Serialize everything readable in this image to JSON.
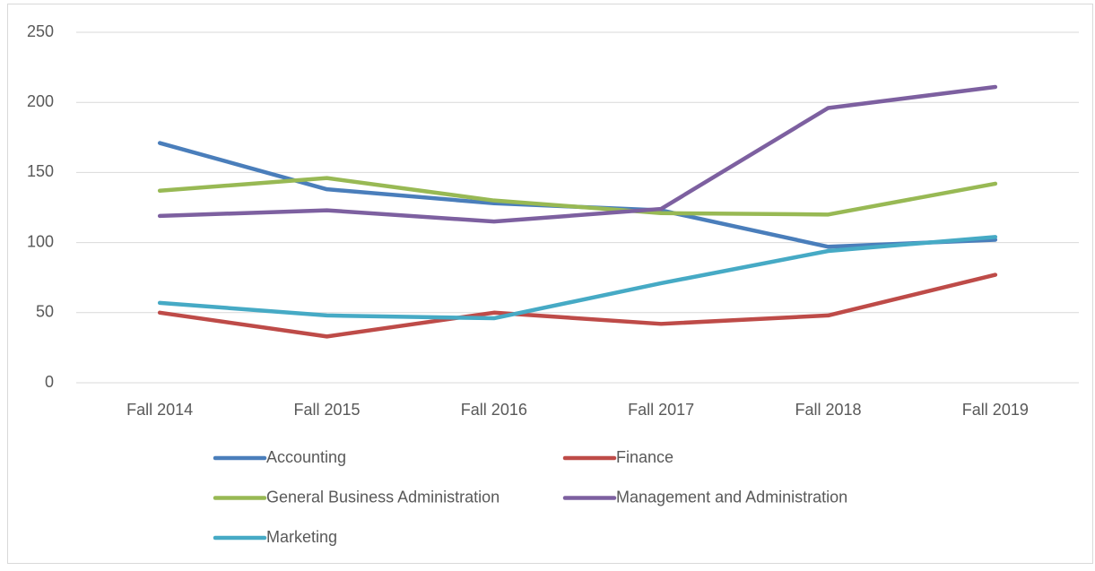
{
  "chart_data": {
    "type": "line",
    "categories": [
      "Fall 2014",
      "Fall 2015",
      "Fall 2016",
      "Fall 2017",
      "Fall 2018",
      "Fall 2019"
    ],
    "series": [
      {
        "name": "Accounting",
        "color": "#4a7ebb",
        "values": [
          171,
          138,
          128,
          123,
          97,
          102
        ]
      },
      {
        "name": "Finance",
        "color": "#be4b48",
        "values": [
          50,
          33,
          50,
          42,
          48,
          77
        ]
      },
      {
        "name": "General Business Administration",
        "color": "#98b954",
        "values": [
          137,
          146,
          130,
          121,
          120,
          142
        ]
      },
      {
        "name": "Management and Administration",
        "color": "#7d60a0",
        "values": [
          119,
          123,
          115,
          124,
          196,
          211
        ]
      },
      {
        "name": "Marketing",
        "color": "#46aac5",
        "values": [
          57,
          48,
          46,
          71,
          94,
          104
        ]
      }
    ],
    "ylim": [
      0,
      250
    ],
    "yticks": [
      0,
      50,
      100,
      150,
      200,
      250
    ],
    "grid": true,
    "legend": "bottom"
  }
}
